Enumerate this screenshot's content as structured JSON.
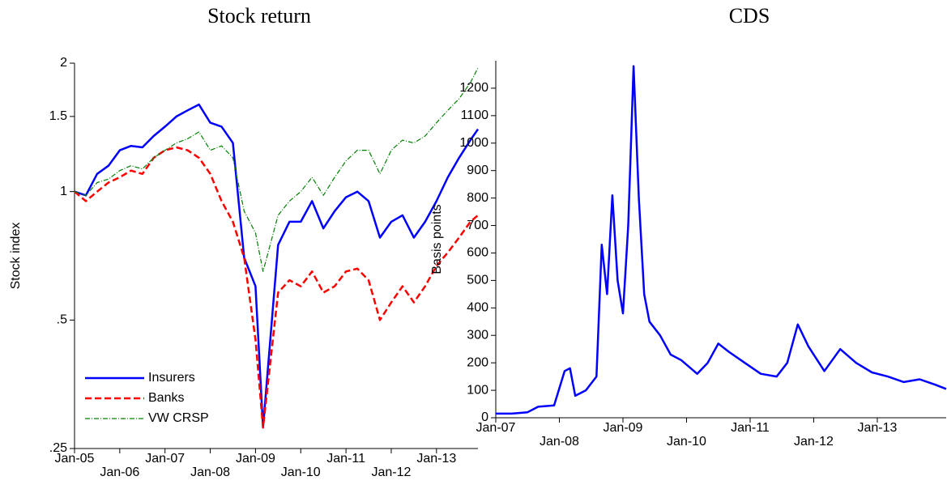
{
  "chart_data": [
    {
      "type": "line",
      "title": "Stock return",
      "y_label": "Stock index",
      "yscale": "log",
      "legend": "lower left",
      "x": [
        "2005-01",
        "2005-04",
        "2005-07",
        "2005-10",
        "2006-01",
        "2006-04",
        "2006-07",
        "2006-10",
        "2007-01",
        "2007-04",
        "2007-07",
        "2007-10",
        "2008-01",
        "2008-04",
        "2008-07",
        "2008-10",
        "2009-01",
        "2009-03",
        "2009-07",
        "2009-10",
        "2010-01",
        "2010-04",
        "2010-07",
        "2010-10",
        "2011-01",
        "2011-04",
        "2011-07",
        "2011-10",
        "2012-01",
        "2012-04",
        "2012-07",
        "2012-10",
        "2013-01",
        "2013-04",
        "2013-07",
        "2013-10",
        "2013-12"
      ],
      "series": [
        {
          "name": "Insurers",
          "color": "#0000ff",
          "style": "solid",
          "values": [
            1.0,
            0.98,
            1.1,
            1.15,
            1.25,
            1.28,
            1.27,
            1.35,
            1.42,
            1.5,
            1.55,
            1.6,
            1.45,
            1.42,
            1.3,
            0.7,
            0.6,
            0.28,
            0.75,
            0.85,
            0.85,
            0.95,
            0.82,
            0.9,
            0.97,
            1.0,
            0.95,
            0.78,
            0.85,
            0.88,
            0.78,
            0.85,
            0.95,
            1.08,
            1.2,
            1.32,
            1.4
          ]
        },
        {
          "name": "Banks",
          "color": "#ff0000",
          "style": "dashed",
          "values": [
            1.0,
            0.95,
            1.0,
            1.05,
            1.08,
            1.12,
            1.1,
            1.2,
            1.25,
            1.27,
            1.25,
            1.2,
            1.1,
            0.95,
            0.85,
            0.7,
            0.45,
            0.28,
            0.58,
            0.62,
            0.6,
            0.65,
            0.58,
            0.6,
            0.65,
            0.66,
            0.62,
            0.5,
            0.55,
            0.6,
            0.55,
            0.6,
            0.67,
            0.72,
            0.78,
            0.85,
            0.88
          ]
        },
        {
          "name": "VW CRSP",
          "color": "#008000",
          "style": "dashdot",
          "values": [
            1.0,
            0.98,
            1.05,
            1.07,
            1.12,
            1.15,
            1.13,
            1.2,
            1.25,
            1.3,
            1.33,
            1.38,
            1.25,
            1.28,
            1.2,
            0.9,
            0.8,
            0.65,
            0.88,
            0.95,
            1.0,
            1.08,
            0.98,
            1.08,
            1.18,
            1.25,
            1.25,
            1.1,
            1.25,
            1.32,
            1.3,
            1.35,
            1.45,
            1.55,
            1.65,
            1.8,
            1.95
          ]
        }
      ],
      "xlim": [
        "2005-01",
        "2013-12"
      ],
      "xticks": [
        {
          "value": "2005-01",
          "label": "Jan-05"
        },
        {
          "value": "2006-01",
          "label": "Jan-06"
        },
        {
          "value": "2007-01",
          "label": "Jan-07"
        },
        {
          "value": "2008-01",
          "label": "Jan-08"
        },
        {
          "value": "2009-01",
          "label": "Jan-09"
        },
        {
          "value": "2010-01",
          "label": "Jan-10"
        },
        {
          "value": "2011-01",
          "label": "Jan-11"
        },
        {
          "value": "2012-01",
          "label": "Jan-12"
        },
        {
          "value": "2013-01",
          "label": "Jan-13"
        }
      ],
      "ylim": [
        0.25,
        2
      ],
      "yticks": [
        {
          "value": 0.25,
          "label": ".25"
        },
        {
          "value": 0.5,
          "label": ".5"
        },
        1,
        1.5,
        2
      ]
    },
    {
      "type": "line",
      "title": "CDS",
      "y_label": "Basis points",
      "x": [
        "2007-01",
        "2007-04",
        "2007-07",
        "2007-09",
        "2007-12",
        "2008-02",
        "2008-03",
        "2008-04",
        "2008-06",
        "2008-08",
        "2008-09",
        "2008-10",
        "2008-11",
        "2008-12",
        "2009-01",
        "2009-02",
        "2009-03",
        "2009-04",
        "2009-05",
        "2009-06",
        "2009-08",
        "2009-10",
        "2009-12",
        "2010-03",
        "2010-05",
        "2010-07",
        "2010-09",
        "2010-12",
        "2011-03",
        "2011-06",
        "2011-08",
        "2011-10",
        "2011-12",
        "2012-03",
        "2012-06",
        "2012-09",
        "2012-12",
        "2013-03",
        "2013-06",
        "2013-09",
        "2013-12",
        "2014-02"
      ],
      "series": [
        {
          "name": "CDS",
          "color": "#0000ff",
          "style": "solid",
          "values": [
            15,
            15,
            20,
            40,
            45,
            170,
            180,
            80,
            100,
            150,
            630,
            450,
            810,
            500,
            380,
            700,
            1280,
            800,
            450,
            350,
            300,
            230,
            210,
            160,
            200,
            270,
            240,
            200,
            160,
            150,
            200,
            340,
            260,
            170,
            250,
            200,
            165,
            150,
            130,
            140,
            120,
            105
          ]
        }
      ],
      "xlim": [
        "2007-01",
        "2014-02"
      ],
      "xticks": [
        {
          "value": "2007-01",
          "label": "Jan-07"
        },
        {
          "value": "2008-01",
          "label": "Jan-08"
        },
        {
          "value": "2009-01",
          "label": "Jan-09"
        },
        {
          "value": "2010-01",
          "label": "Jan-10"
        },
        {
          "value": "2011-01",
          "label": "Jan-11"
        },
        {
          "value": "2012-01",
          "label": "Jan-12"
        },
        {
          "value": "2013-01",
          "label": "Jan-13"
        }
      ],
      "ylim": [
        0,
        1300
      ],
      "yticks": [
        0,
        100,
        200,
        300,
        400,
        500,
        600,
        700,
        800,
        900,
        1000,
        1100,
        1200
      ]
    }
  ]
}
